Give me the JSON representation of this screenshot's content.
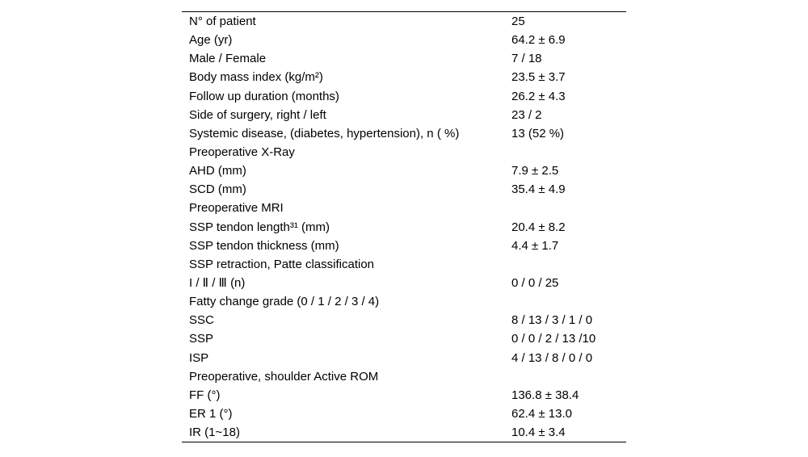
{
  "page": {
    "background_color": "#ffffff",
    "text_color": "#000000",
    "rule_color": "#000000"
  },
  "table": {
    "rows": [
      {
        "label": "N° of patient",
        "value": "25"
      },
      {
        "label": "Age (yr)",
        "value": "64.2 ± 6.9"
      },
      {
        "label": "Male / Female",
        "value": "7 / 18"
      },
      {
        "label": "Body mass index (kg/m²)",
        "value": "23.5 ± 3.7"
      },
      {
        "label": "Follow up duration (months)",
        "value": "26.2 ± 4.3"
      },
      {
        "label": "Side of surgery, right / left",
        "value": "23 / 2"
      },
      {
        "label": "Systemic disease, (diabetes, hypertension), n ( %)",
        "value": "13 (52 %)"
      },
      {
        "label": "Preoperative X-Ray",
        "value": ""
      },
      {
        "label": "AHD (mm)",
        "value": "7.9 ± 2.5"
      },
      {
        "label": "SCD (mm)",
        "value": "35.4 ± 4.9"
      },
      {
        "label": "Preoperative MRI",
        "value": ""
      },
      {
        "label": "SSP tendon length³¹ (mm)",
        "value": "20.4 ± 8.2"
      },
      {
        "label": "SSP tendon thickness (mm)",
        "value": "4.4 ± 1.7"
      },
      {
        "label": "SSP retraction, Patte classification",
        "value": ""
      },
      {
        "label": "I / Ⅱ / Ⅲ (n)",
        "value": "0 / 0 / 25"
      },
      {
        "label": "Fatty change grade (0 / 1 / 2 / 3 / 4)",
        "value": ""
      },
      {
        "label": "SSC",
        "value": "8 / 13 / 3 / 1 / 0"
      },
      {
        "label": "SSP",
        "value": "0 / 0 / 2 / 13 /10"
      },
      {
        "label": "ISP",
        "value": "4 / 13 / 8 / 0 / 0"
      },
      {
        "label": "Preoperative, shoulder Active ROM",
        "value": ""
      },
      {
        "label": "FF (°)",
        "value": "136.8 ± 38.4"
      },
      {
        "label": "ER 1 (°)",
        "value": "62.4 ± 13.0"
      },
      {
        "label": "IR (1~18)",
        "value": "10.4 ± 3.4"
      }
    ]
  }
}
